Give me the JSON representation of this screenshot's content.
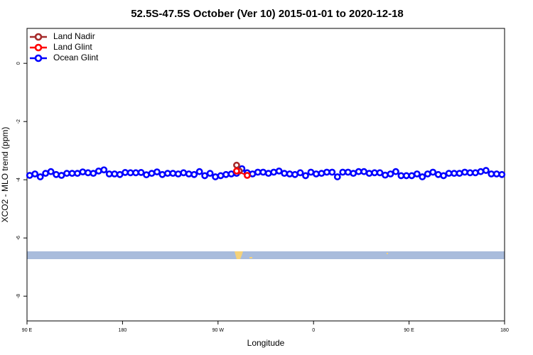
{
  "chart_data": {
    "type": "line",
    "title": "52.5S-47.5S October (Ver 10)   2015-01-01 to 2020-12-18",
    "x_label": "Longitude",
    "y_label": "XCO2 - MLO trend (ppm)",
    "legend": "top-left",
    "xlim": [
      90,
      540
    ],
    "xticks": [
      {
        "value": 90,
        "label": "90 E"
      },
      {
        "value": 180,
        "label": "180"
      },
      {
        "value": 270,
        "label": "90 W"
      },
      {
        "value": 360,
        "label": "0"
      },
      {
        "value": 450,
        "label": "90 E"
      },
      {
        "value": 540,
        "label": "180"
      }
    ],
    "ylim": [
      -8.85,
      1.2
    ],
    "yticks": [
      0,
      -2,
      -4,
      -6,
      -8
    ],
    "series": [
      {
        "name": "Land Nadir",
        "color": "#a52a2a",
        "x": [
          287.5,
          290
        ],
        "values": [
          -3.5,
          -3.7
        ]
      },
      {
        "name": "Land Glint",
        "color": "#ff0000",
        "x": [
          287.5,
          297.5
        ],
        "values": [
          -3.7,
          -3.85
        ]
      },
      {
        "name": "Ocean Glint",
        "color": "#0000ff",
        "x": [
          92.5,
          97.5,
          102.5,
          107.5,
          112.5,
          117.5,
          122.5,
          127.5,
          132.5,
          137.5,
          142.5,
          147.5,
          152.5,
          157.5,
          162.5,
          167.5,
          172.5,
          177.5,
          182.5,
          187.5,
          192.5,
          197.5,
          202.5,
          207.5,
          212.5,
          217.5,
          222.5,
          227.5,
          232.5,
          237.5,
          242.5,
          247.5,
          252.5,
          257.5,
          262.5,
          267.5,
          272.5,
          277.5,
          282.5,
          287.5,
          292.5,
          297.5,
          302.5,
          307.5,
          312.5,
          317.5,
          322.5,
          327.5,
          332.5,
          337.5,
          342.5,
          347.5,
          352.5,
          357.5,
          362.5,
          367.5,
          372.5,
          377.5,
          382.5,
          387.5,
          392.5,
          397.5,
          402.5,
          407.5,
          412.5,
          417.5,
          422.5,
          427.5,
          432.5,
          437.5,
          442.5,
          447.5,
          452.5,
          457.5,
          462.5,
          467.5,
          472.5,
          477.5,
          482.5,
          487.5,
          492.5,
          497.5,
          502.5,
          507.5,
          512.5,
          517.5,
          522.5,
          527.5,
          532.5,
          537.5
        ],
        "values": [
          -3.85,
          -3.8,
          -3.9,
          -3.78,
          -3.72,
          -3.82,
          -3.85,
          -3.78,
          -3.78,
          -3.78,
          -3.73,
          -3.76,
          -3.78,
          -3.7,
          -3.66,
          -3.8,
          -3.8,
          -3.82,
          -3.75,
          -3.76,
          -3.76,
          -3.75,
          -3.83,
          -3.78,
          -3.73,
          -3.82,
          -3.78,
          -3.78,
          -3.8,
          -3.76,
          -3.8,
          -3.82,
          -3.72,
          -3.86,
          -3.78,
          -3.9,
          -3.86,
          -3.82,
          -3.8,
          -3.78,
          -3.62,
          -3.76,
          -3.8,
          -3.74,
          -3.74,
          -3.78,
          -3.74,
          -3.7,
          -3.78,
          -3.8,
          -3.82,
          -3.76,
          -3.86,
          -3.74,
          -3.8,
          -3.78,
          -3.74,
          -3.74,
          -3.9,
          -3.74,
          -3.74,
          -3.78,
          -3.72,
          -3.72,
          -3.78,
          -3.76,
          -3.76,
          -3.84,
          -3.8,
          -3.72,
          -3.86,
          -3.86,
          -3.86,
          -3.8,
          -3.9,
          -3.8,
          -3.74,
          -3.82,
          -3.86,
          -3.78,
          -3.78,
          -3.78,
          -3.74,
          -3.76,
          -3.76,
          -3.72,
          -3.68,
          -3.8,
          -3.8,
          -3.82
        ]
      }
    ]
  }
}
